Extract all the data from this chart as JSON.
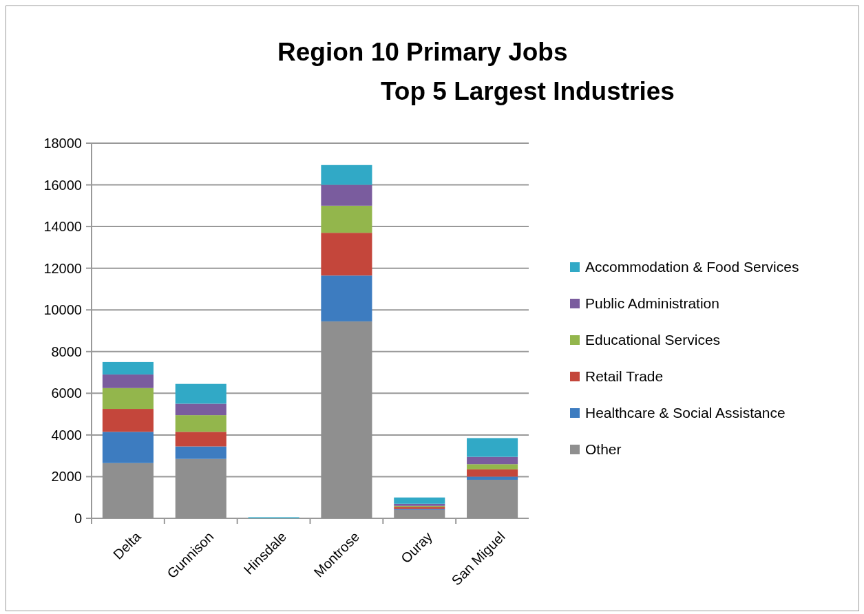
{
  "chart_data": {
    "type": "bar",
    "title": "Region 10 Primary Jobs\nTop 5 Largest Industries",
    "categories": [
      "Delta",
      "Gunnison",
      "Hinsdale",
      "Montrose",
      "Ouray",
      "San Miguel"
    ],
    "stacked": true,
    "series": [
      {
        "name": "Other",
        "color": "#8f8f8f",
        "values": [
          2650,
          2850,
          null,
          9450,
          400,
          1850
        ]
      },
      {
        "name": "Healthcare & Social Assistance",
        "color": "#3d7cc0",
        "values": [
          1500,
          600,
          null,
          2200,
          50,
          150
        ]
      },
      {
        "name": "Retail Trade",
        "color": "#c4463b",
        "values": [
          1100,
          700,
          null,
          2050,
          100,
          350
        ]
      },
      {
        "name": "Educational Services",
        "color": "#93b64c",
        "values": [
          1000,
          800,
          null,
          1300,
          50,
          250
        ]
      },
      {
        "name": "Public Administration",
        "color": "#7a5c9e",
        "values": [
          650,
          550,
          null,
          1000,
          100,
          350
        ]
      },
      {
        "name": "Accommodation & Food Services",
        "color": "#31a9c6",
        "values": [
          600,
          950,
          50,
          950,
          300,
          900
        ]
      }
    ],
    "ylim": [
      0,
      18000
    ],
    "yticks": [
      0,
      2000,
      4000,
      6000,
      8000,
      10000,
      12000,
      14000,
      16000,
      18000
    ],
    "grid": "y",
    "legend": "right"
  }
}
